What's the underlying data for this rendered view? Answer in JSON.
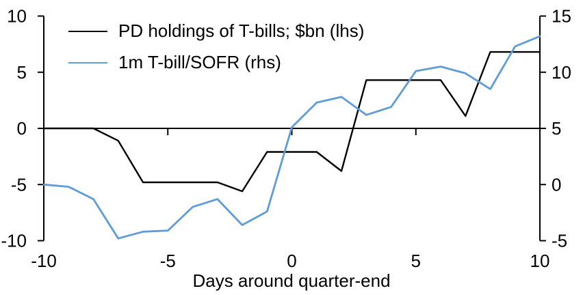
{
  "chart_data": {
    "type": "line",
    "title": "",
    "xlabel": "Days around quarter-end",
    "grid": false,
    "legend_position": "top-left",
    "x": [
      -10,
      -9,
      -8,
      -7,
      -6,
      -5,
      -4,
      -3,
      -2,
      -1,
      0,
      1,
      2,
      3,
      4,
      5,
      6,
      7,
      8,
      9,
      10
    ],
    "series": [
      {
        "name": "PD holdings of T-bills; $bn (lhs)",
        "axis": "left",
        "color": "#000000",
        "values": [
          0,
          0,
          0,
          -1.1,
          -4.8,
          -4.8,
          -4.8,
          -4.8,
          -5.6,
          -2.1,
          -2.1,
          -2.1,
          -3.8,
          4.3,
          4.3,
          4.3,
          4.3,
          1.1,
          6.8,
          6.8,
          6.8
        ]
      },
      {
        "name": "1m T-bill/SOFR (rhs)",
        "axis": "right",
        "color": "#5E9CD8",
        "values": [
          0,
          -0.2,
          -1.3,
          -4.8,
          -4.2,
          -4.1,
          -2.0,
          -1.3,
          -3.6,
          -2.4,
          5.1,
          7.3,
          7.8,
          6.2,
          6.9,
          10.1,
          10.5,
          9.9,
          8.5,
          12.3,
          13.2
        ]
      }
    ],
    "left_axis": {
      "min": -10,
      "max": 10,
      "ticks": [
        10,
        5,
        0,
        -5,
        -10
      ]
    },
    "right_axis": {
      "min": -5,
      "max": 15,
      "ticks": [
        15,
        10,
        5,
        0,
        -5
      ]
    },
    "x_axis": {
      "min": -10,
      "max": 10,
      "labeled_ticks": [
        -10,
        -5,
        0,
        5,
        10
      ],
      "zero_line_ticks": [
        -5,
        0,
        5
      ]
    }
  }
}
